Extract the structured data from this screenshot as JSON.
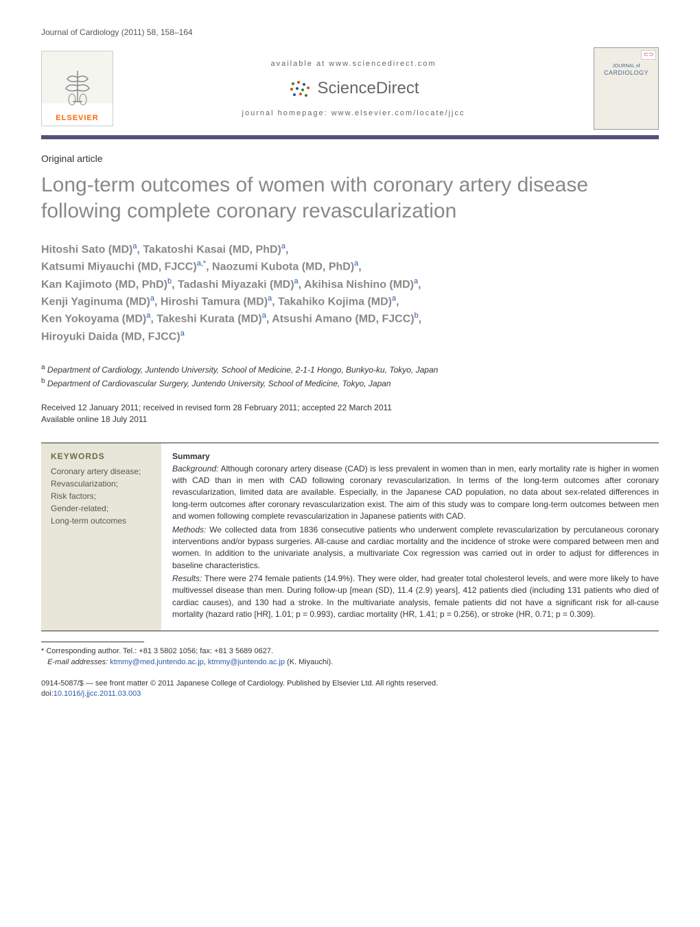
{
  "journal_header": "Journal of Cardiology (2011) 58, 158–164",
  "banner": {
    "elsevier_label": "ELSEVIER",
    "available_at": "available at www.sciencedirect.com",
    "sciencedirect": "ScienceDirect",
    "homepage": "journal homepage: www.elsevier.com/locate/jjcc",
    "cover_badge": "⊂⊃",
    "cover_line1": "JOURNAL of",
    "cover_line2": "CARDIOLOGY"
  },
  "article_type": "Original article",
  "title": "Long-term outcomes of women with coronary artery disease following complete coronary revascularization",
  "authors_html": "Hitoshi Sato (MD)<sup>a</sup>, Takatoshi Kasai (MD, PhD)<sup>a</sup>,<br>Katsumi Miyauchi (MD, FJCC)<sup>a,*</sup>, Naozumi Kubota (MD, PhD)<sup>a</sup>,<br>Kan Kajimoto (MD, PhD)<sup>b</sup>, Tadashi Miyazaki (MD)<sup>a</sup>, Akihisa Nishino (MD)<sup>a</sup>,<br>Kenji Yaginuma (MD)<sup>a</sup>, Hiroshi Tamura (MD)<sup>a</sup>, Takahiko Kojima (MD)<sup>a</sup>,<br>Ken Yokoyama (MD)<sup>a</sup>, Takeshi Kurata (MD)<sup>a</sup>, Atsushi Amano (MD, FJCC)<sup>b</sup>,<br>Hiroyuki Daida (MD, FJCC)<sup>a</sup>",
  "affiliations": {
    "a": "Department of Cardiology, Juntendo University, School of Medicine, 2-1-1 Hongo, Bunkyo-ku, Tokyo, Japan",
    "b": "Department of Cardiovascular Surgery, Juntendo University, School of Medicine, Tokyo, Japan"
  },
  "dates": {
    "received": "Received 12 January 2011; received in revised form 28 February 2011; accepted 22 March 2011",
    "online": "Available online 18 July 2011"
  },
  "keywords": {
    "title": "KEYWORDS",
    "items": "Coronary artery disease;\nRevascularization;\nRisk factors;\nGender-related;\nLong-term outcomes"
  },
  "summary": {
    "title": "Summary",
    "background_label": "Background:",
    "background": "Although coronary artery disease (CAD) is less prevalent in women than in men, early mortality rate is higher in women with CAD than in men with CAD following coronary revascularization. In terms of the long-term outcomes after coronary revascularization, limited data are available. Especially, in the Japanese CAD population, no data about sex-related differences in long-term outcomes after coronary revascularization exist. The aim of this study was to compare long-term outcomes between men and women following complete revascularization in Japanese patients with CAD.",
    "methods_label": "Methods:",
    "methods": "We collected data from 1836 consecutive patients who underwent complete revascularization by percutaneous coronary interventions and/or bypass surgeries. All-cause and cardiac mortality and the incidence of stroke were compared between men and women. In addition to the univariate analysis, a multivariate Cox regression was carried out in order to adjust for differences in baseline characteristics.",
    "results_label": "Results:",
    "results": "There were 274 female patients (14.9%). They were older, had greater total cholesterol levels, and were more likely to have multivessel disease than men. During follow-up [mean (SD), 11.4 (2.9) years], 412 patients died (including 131 patients who died of cardiac causes), and 130 had a stroke. In the multivariate analysis, female patients did not have a significant risk for all-cause mortality (hazard ratio [HR], 1.01; p = 0.993), cardiac mortality (HR, 1.41; p = 0.256), or stroke (HR, 0.71; p = 0.309)."
  },
  "footnotes": {
    "corresponding": "* Corresponding author. Tel.: +81 3 5802 1056; fax: +81 3 5689 0627.",
    "email_label": "E-mail addresses:",
    "email1": "ktmmy@med.juntendo.ac.jp",
    "email2": "ktmmy@juntendo.ac.jp",
    "email_name": "(K. Miyauchi)."
  },
  "footer": {
    "issn": "0914-5087/$ — see front matter © 2011 Japanese College of Cardiology. Published by Elsevier Ltd. All rights reserved.",
    "doi_label": "doi:",
    "doi": "10.1016/j.jjcc.2011.03.003"
  },
  "colors": {
    "header_rule": "#52527a",
    "elsevier_orange": "#ff6600",
    "link_blue": "#2a5aa8",
    "title_grey": "#888888",
    "keywords_bg": "#e8e6d8",
    "keywords_title": "#6b6b47",
    "cover_bg": "#f0ede4",
    "cover_text": "#4a6a8a"
  }
}
